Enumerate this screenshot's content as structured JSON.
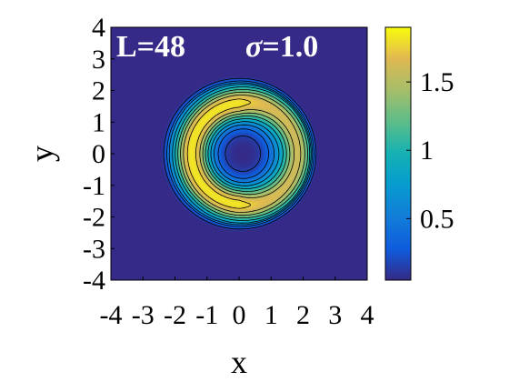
{
  "chart_data": {
    "type": "heatmap",
    "title": "",
    "xlabel": "x",
    "ylabel": "y",
    "xlim": [
      -4,
      4
    ],
    "ylim": [
      -4,
      4
    ],
    "xticks": [
      "-4",
      "-3",
      "-2",
      "-1",
      "0",
      "1",
      "2",
      "3",
      "4"
    ],
    "yticks": [
      "-4",
      "-3",
      "-2",
      "-1",
      "0",
      "1",
      "2",
      "3",
      "4"
    ],
    "annotation_left": "L=48",
    "annotation_sigma_symbol": "σ",
    "annotation_sigma_value": "=1.0",
    "colorbar": {
      "colormap": "parula",
      "limits": [
        0.05,
        1.9
      ],
      "ticks": [
        0.5,
        1,
        1.5
      ],
      "tick_labels": [
        "0.5",
        "1",
        "1.5"
      ]
    },
    "field": {
      "description_values": {
        "background": 0.05,
        "peak": 1.88,
        "center_minimum": 0.2,
        "ring_radius": 1.6,
        "outer_edge_radius": 2.4
      },
      "contour_levels": [
        0.15,
        0.35,
        0.55,
        0.75,
        0.95,
        1.15,
        1.35,
        1.55,
        1.75
      ]
    }
  }
}
